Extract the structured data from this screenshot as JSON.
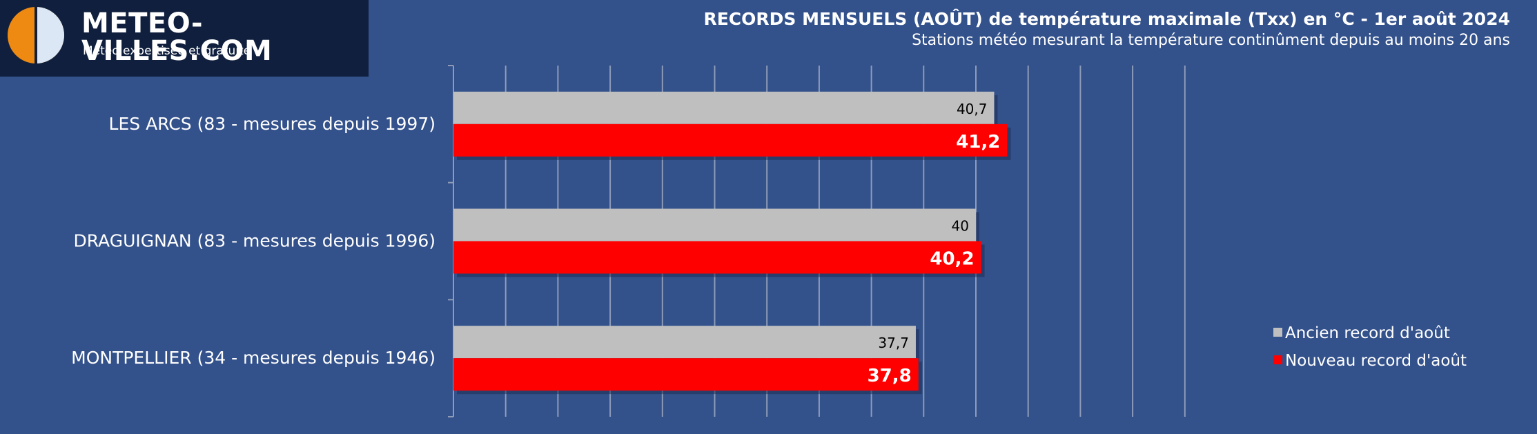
{
  "logo": {
    "title": "METEO-VILLES.COM",
    "subtitle": "Météo expertisée et gratuite"
  },
  "colors": {
    "background": "#33518b",
    "logo_background": "#0f1f3d",
    "old_record": "#bfbfbf",
    "new_record": "#ff0000",
    "logo_orange": "#ee8a12"
  },
  "chart_data": {
    "type": "bar",
    "orientation": "horizontal",
    "title": "RECORDS MENSUELS (AOÛT) de température maximale (Txx) en °C - 1er août 2024",
    "subtitle": "Stations météo mesurant la température continûment depuis au moins 20 ans",
    "categories": [
      "LES ARCS (83 - mesures depuis 1997)",
      "DRAGUIGNAN (83 - mesures depuis 1996)",
      "MONTPELLIER (34 - mesures depuis 1946)"
    ],
    "series": [
      {
        "name": "Ancien record d'août",
        "values": [
          40.7,
          40,
          37.7
        ],
        "labels": [
          "40,7",
          "40",
          "37,7"
        ]
      },
      {
        "name": "Nouveau record d'août",
        "values": [
          41.2,
          40.2,
          37.8
        ],
        "labels": [
          "41,2",
          "40,2",
          "37,8"
        ]
      }
    ],
    "xlim": [
      20,
      48
    ],
    "grid": true,
    "legend": "bottom-right"
  }
}
